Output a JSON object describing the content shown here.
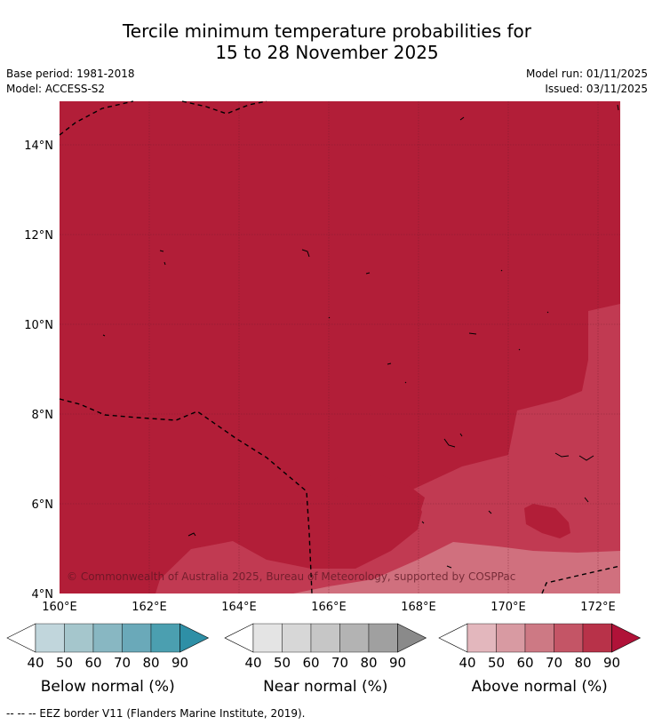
{
  "title": {
    "line1": "Tercile minimum temperature probabilities for",
    "line2": "15 to 28 November 2025"
  },
  "info": {
    "base_period": "Base period: 1981-2018",
    "model": "Model: ACCESS-S2",
    "model_run": "Model run: 01/11/2025",
    "issued": "Issued: 03/11/2025"
  },
  "map": {
    "lon_labels": [
      "160°E",
      "162°E",
      "164°E",
      "166°E",
      "168°E",
      "170°E",
      "172°E"
    ],
    "lat_labels": [
      "14°N",
      "12°N",
      "10°N",
      "8°N",
      "6°N",
      "4°N"
    ],
    "copyright": "© Commonwealth of Australia 2025, Bureau of Meteorology, supported by COSPPac",
    "colors": {
      "above_90": "#b21e38",
      "above_80": "#c13a52",
      "above_70": "#d0707e"
    }
  },
  "colorbars": [
    {
      "label": "Below normal (%)",
      "ticks": [
        "40",
        "50",
        "60",
        "70",
        "80",
        "90"
      ],
      "colors": [
        "#ffffff",
        "#c1d6dc",
        "#a5c6cc",
        "#88b7c2",
        "#6aa9b9",
        "#4b9fb0",
        "#2e8fa6"
      ]
    },
    {
      "label": "Near normal (%)",
      "ticks": [
        "40",
        "50",
        "60",
        "70",
        "80",
        "90"
      ],
      "colors": [
        "#ffffff",
        "#e4e4e4",
        "#d7d7d7",
        "#c6c6c6",
        "#b3b3b3",
        "#a0a0a0",
        "#8a8a8a"
      ]
    },
    {
      "label": "Above normal (%)",
      "ticks": [
        "40",
        "50",
        "60",
        "70",
        "80",
        "90"
      ],
      "colors": [
        "#ffffff",
        "#e3b7bd",
        "#d89aa2",
        "#cd7984",
        "#c45566",
        "#b83249",
        "#b01238"
      ]
    }
  ],
  "footer": {
    "legend_text": "--  --  -- EEZ border V11 (Flanders Marine Institute, 2019)."
  }
}
